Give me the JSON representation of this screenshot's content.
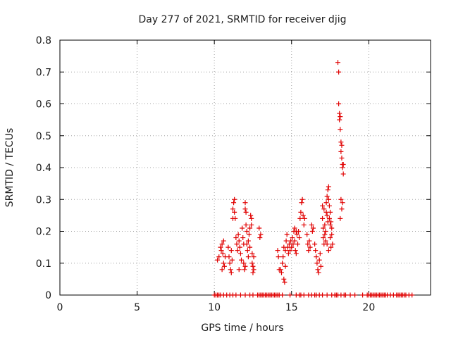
{
  "chart_data": {
    "type": "scatter",
    "title": "Day 277 of 2021, SRMTID for receiver djig",
    "xlabel": "GPS time / hours",
    "ylabel": "SRMTID / TECUs",
    "xlim": [
      0,
      24
    ],
    "ylim": [
      0,
      0.8
    ],
    "x_ticks": [
      0,
      5,
      10,
      15,
      20
    ],
    "x_tick_labels": [
      "0",
      "5",
      "10",
      "15",
      "20"
    ],
    "y_ticks": [
      0,
      0.1,
      0.2,
      0.3,
      0.4,
      0.5,
      0.6,
      0.7,
      0.8
    ],
    "y_tick_labels": [
      "0",
      "0.1",
      "0.2",
      "0.3",
      "0.4",
      "0.5",
      "0.6",
      "0.7",
      "0.8"
    ],
    "grid": true,
    "marker": "+",
    "color": "#e00000",
    "series": [
      {
        "name": "SRMTID",
        "points": [
          [
            10.0,
            0
          ],
          [
            10.1,
            0
          ],
          [
            10.2,
            0
          ],
          [
            10.3,
            0
          ],
          [
            10.4,
            0
          ],
          [
            10.6,
            0
          ],
          [
            10.8,
            0
          ],
          [
            11.0,
            0
          ],
          [
            11.2,
            0
          ],
          [
            11.4,
            0
          ],
          [
            11.7,
            0
          ],
          [
            12.0,
            0
          ],
          [
            12.3,
            0
          ],
          [
            12.5,
            0
          ],
          [
            12.8,
            0
          ],
          [
            12.9,
            0
          ],
          [
            13.0,
            0
          ],
          [
            13.1,
            0
          ],
          [
            13.2,
            0
          ],
          [
            13.3,
            0
          ],
          [
            13.4,
            0
          ],
          [
            13.5,
            0
          ],
          [
            13.6,
            0
          ],
          [
            13.7,
            0
          ],
          [
            13.8,
            0
          ],
          [
            13.9,
            0
          ],
          [
            14.0,
            0
          ],
          [
            14.1,
            0
          ],
          [
            14.2,
            0
          ],
          [
            14.4,
            0
          ],
          [
            14.9,
            0
          ],
          [
            15.3,
            0
          ],
          [
            15.5,
            0
          ],
          [
            15.6,
            0
          ],
          [
            15.8,
            0
          ],
          [
            16.1,
            0
          ],
          [
            16.3,
            0
          ],
          [
            16.5,
            0
          ],
          [
            16.6,
            0
          ],
          [
            16.8,
            0
          ],
          [
            17.0,
            0
          ],
          [
            17.3,
            0
          ],
          [
            17.6,
            0
          ],
          [
            17.8,
            0
          ],
          [
            17.9,
            0
          ],
          [
            18.0,
            0
          ],
          [
            18.2,
            0
          ],
          [
            18.4,
            0
          ],
          [
            18.5,
            0
          ],
          [
            18.8,
            0
          ],
          [
            19.1,
            0
          ],
          [
            19.6,
            0
          ],
          [
            19.9,
            0
          ],
          [
            20.0,
            0
          ],
          [
            20.1,
            0
          ],
          [
            20.2,
            0
          ],
          [
            20.3,
            0
          ],
          [
            20.4,
            0
          ],
          [
            20.5,
            0
          ],
          [
            20.6,
            0
          ],
          [
            20.7,
            0
          ],
          [
            20.8,
            0
          ],
          [
            20.9,
            0
          ],
          [
            21.0,
            0
          ],
          [
            21.1,
            0
          ],
          [
            21.2,
            0
          ],
          [
            21.4,
            0
          ],
          [
            21.6,
            0
          ],
          [
            21.8,
            0
          ],
          [
            21.9,
            0
          ],
          [
            22.0,
            0
          ],
          [
            22.1,
            0
          ],
          [
            22.2,
            0
          ],
          [
            22.3,
            0
          ],
          [
            22.4,
            0
          ],
          [
            22.6,
            0
          ],
          [
            22.8,
            0
          ],
          [
            10.2,
            0.11
          ],
          [
            10.3,
            0.12
          ],
          [
            10.4,
            0.15
          ],
          [
            10.45,
            0.14
          ],
          [
            10.5,
            0.16
          ],
          [
            10.55,
            0.13
          ],
          [
            10.6,
            0.1
          ],
          [
            10.65,
            0.09
          ],
          [
            10.7,
            0.12
          ],
          [
            10.5,
            0.08
          ],
          [
            10.6,
            0.17
          ],
          [
            10.9,
            0.15
          ],
          [
            10.95,
            0.12
          ],
          [
            11.0,
            0.1
          ],
          [
            11.05,
            0.08
          ],
          [
            11.1,
            0.07
          ],
          [
            11.1,
            0.14
          ],
          [
            11.15,
            0.11
          ],
          [
            11.2,
            0.24
          ],
          [
            11.2,
            0.27
          ],
          [
            11.25,
            0.29
          ],
          [
            11.3,
            0.3
          ],
          [
            11.3,
            0.26
          ],
          [
            11.35,
            0.24
          ],
          [
            11.4,
            0.18
          ],
          [
            11.45,
            0.16
          ],
          [
            11.5,
            0.14
          ],
          [
            11.55,
            0.19
          ],
          [
            11.6,
            0.17
          ],
          [
            11.65,
            0.15
          ],
          [
            11.7,
            0.13
          ],
          [
            11.75,
            0.11
          ],
          [
            11.8,
            0.21
          ],
          [
            11.85,
            0.18
          ],
          [
            11.9,
            0.16
          ],
          [
            11.9,
            0.1
          ],
          [
            11.95,
            0.08
          ],
          [
            12.0,
            0.29
          ],
          [
            12.0,
            0.27
          ],
          [
            12.05,
            0.26
          ],
          [
            12.05,
            0.22
          ],
          [
            12.1,
            0.2
          ],
          [
            12.1,
            0.16
          ],
          [
            12.15,
            0.14
          ],
          [
            12.2,
            0.12
          ],
          [
            12.2,
            0.17
          ],
          [
            12.25,
            0.19
          ],
          [
            12.3,
            0.15
          ],
          [
            12.3,
            0.21
          ],
          [
            12.35,
            0.25
          ],
          [
            12.4,
            0.24
          ],
          [
            12.4,
            0.22
          ],
          [
            12.45,
            0.13
          ],
          [
            12.45,
            0.1
          ],
          [
            12.5,
            0.09
          ],
          [
            12.5,
            0.07
          ],
          [
            12.55,
            0.08
          ],
          [
            12.55,
            0.12
          ],
          [
            12.0,
            0.09
          ],
          [
            11.6,
            0.08
          ],
          [
            12.9,
            0.21
          ],
          [
            12.95,
            0.18
          ],
          [
            13.0,
            0.19
          ],
          [
            14.1,
            0.14
          ],
          [
            14.15,
            0.12
          ],
          [
            14.2,
            0.08
          ],
          [
            14.3,
            0.08
          ],
          [
            14.35,
            0.07
          ],
          [
            14.4,
            0.1
          ],
          [
            14.45,
            0.12
          ],
          [
            14.5,
            0.15
          ],
          [
            14.5,
            0.05
          ],
          [
            14.55,
            0.04
          ],
          [
            14.6,
            0.09
          ],
          [
            14.6,
            0.14
          ],
          [
            14.65,
            0.17
          ],
          [
            14.7,
            0.19
          ],
          [
            14.75,
            0.15
          ],
          [
            14.8,
            0.13
          ],
          [
            14.85,
            0.16
          ],
          [
            14.9,
            0.14
          ],
          [
            14.95,
            0.17
          ],
          [
            15.0,
            0.15
          ],
          [
            15.05,
            0.18
          ],
          [
            15.1,
            0.16
          ],
          [
            15.15,
            0.2
          ],
          [
            15.2,
            0.21
          ],
          [
            15.2,
            0.17
          ],
          [
            15.25,
            0.14
          ],
          [
            15.3,
            0.13
          ],
          [
            15.3,
            0.2
          ],
          [
            15.35,
            0.19
          ],
          [
            15.4,
            0.16
          ],
          [
            15.45,
            0.2
          ],
          [
            15.5,
            0.18
          ],
          [
            15.55,
            0.24
          ],
          [
            15.6,
            0.26
          ],
          [
            15.65,
            0.29
          ],
          [
            15.7,
            0.3
          ],
          [
            15.75,
            0.25
          ],
          [
            15.8,
            0.22
          ],
          [
            15.85,
            0.24
          ],
          [
            16.0,
            0.19
          ],
          [
            16.05,
            0.16
          ],
          [
            16.1,
            0.14
          ],
          [
            16.15,
            0.17
          ],
          [
            16.2,
            0.15
          ],
          [
            16.3,
            0.22
          ],
          [
            16.35,
            0.2
          ],
          [
            16.4,
            0.21
          ],
          [
            16.5,
            0.16
          ],
          [
            16.55,
            0.14
          ],
          [
            16.6,
            0.12
          ],
          [
            16.65,
            0.1
          ],
          [
            16.7,
            0.08
          ],
          [
            16.75,
            0.07
          ],
          [
            16.8,
            0.11
          ],
          [
            16.85,
            0.13
          ],
          [
            16.9,
            0.09
          ],
          [
            17.0,
            0.28
          ],
          [
            17.0,
            0.24
          ],
          [
            17.05,
            0.21
          ],
          [
            17.05,
            0.18
          ],
          [
            17.1,
            0.16
          ],
          [
            17.1,
            0.27
          ],
          [
            17.15,
            0.19
          ],
          [
            17.15,
            0.22
          ],
          [
            17.2,
            0.2
          ],
          [
            17.2,
            0.17
          ],
          [
            17.25,
            0.26
          ],
          [
            17.25,
            0.29
          ],
          [
            17.3,
            0.31
          ],
          [
            17.3,
            0.25
          ],
          [
            17.35,
            0.33
          ],
          [
            17.35,
            0.23
          ],
          [
            17.4,
            0.34
          ],
          [
            17.4,
            0.3
          ],
          [
            17.45,
            0.28
          ],
          [
            17.45,
            0.24
          ],
          [
            17.5,
            0.26
          ],
          [
            17.5,
            0.22
          ],
          [
            17.5,
            0.18
          ],
          [
            17.55,
            0.23
          ],
          [
            17.55,
            0.15
          ],
          [
            17.6,
            0.21
          ],
          [
            17.6,
            0.19
          ],
          [
            17.65,
            0.16
          ],
          [
            17.4,
            0.14
          ],
          [
            17.3,
            0.16
          ],
          [
            18.0,
            0.73
          ],
          [
            18.05,
            0.7
          ],
          [
            18.05,
            0.6
          ],
          [
            18.1,
            0.57
          ],
          [
            18.1,
            0.55
          ],
          [
            18.15,
            0.56
          ],
          [
            18.15,
            0.52
          ],
          [
            18.2,
            0.48
          ],
          [
            18.2,
            0.45
          ],
          [
            18.25,
            0.47
          ],
          [
            18.25,
            0.43
          ],
          [
            18.3,
            0.41
          ],
          [
            18.3,
            0.4
          ],
          [
            18.35,
            0.38
          ],
          [
            18.2,
            0.3
          ],
          [
            18.25,
            0.27
          ],
          [
            18.15,
            0.24
          ],
          [
            18.3,
            0.29
          ],
          [
            18.35,
            0.41
          ]
        ]
      }
    ]
  }
}
